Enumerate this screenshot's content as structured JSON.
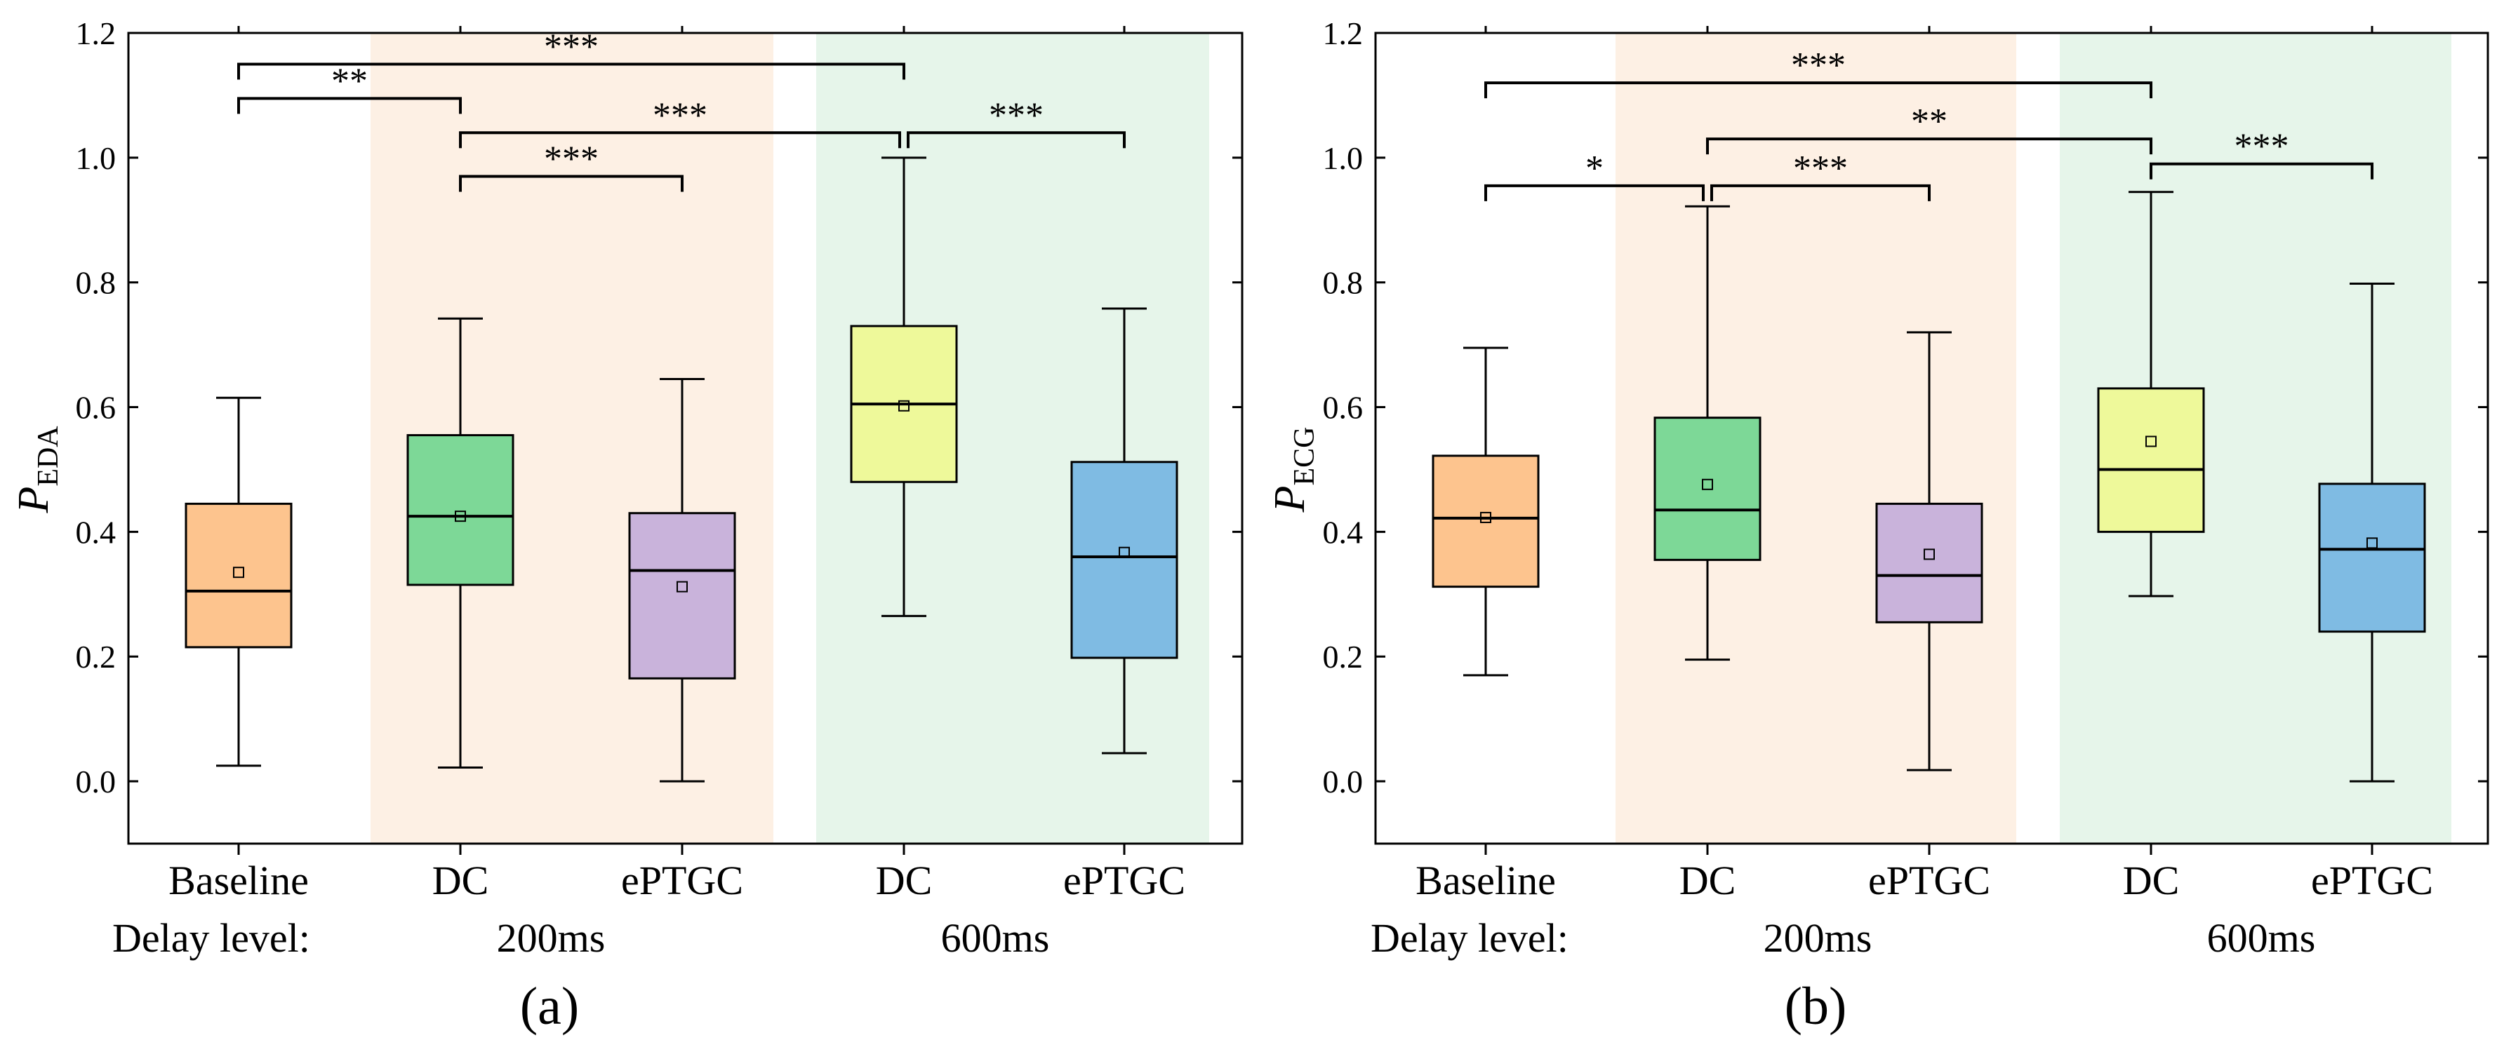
{
  "chart_data": [
    {
      "type": "box",
      "panel_label": "(a)",
      "ylabel_main": "P",
      "ylabel_sub": "EDA",
      "ylim": [
        -0.1,
        1.2
      ],
      "yticks": [
        0.0,
        0.2,
        0.4,
        0.6,
        0.8,
        1.0,
        1.2
      ],
      "ytick_labels": [
        "0.0",
        "0.2",
        "0.4",
        "0.6",
        "0.8",
        "1.0",
        "1.2"
      ],
      "categories": [
        "Baseline",
        "DC",
        "ePTGC",
        "DC",
        "ePTGC"
      ],
      "delay_label": "Delay level:",
      "delay_groups": [
        {
          "label": "200ms",
          "from": 1,
          "to": 2,
          "color": "#fdf0e4"
        },
        {
          "label": "600ms",
          "from": 3,
          "to": 4,
          "color": "#e6f5ea"
        }
      ],
      "boxes": [
        {
          "name": "Baseline",
          "min": 0.025,
          "q1": 0.215,
          "median": 0.305,
          "q3": 0.445,
          "max": 0.615,
          "mean": 0.335,
          "color": "#fdc48e"
        },
        {
          "name": "DC (200ms)",
          "min": 0.022,
          "q1": 0.315,
          "median": 0.425,
          "q3": 0.555,
          "max": 0.742,
          "mean": 0.425,
          "color": "#7dd897"
        },
        {
          "name": "ePTGC (200ms)",
          "min": 0.0,
          "q1": 0.165,
          "median": 0.338,
          "q3": 0.43,
          "max": 0.645,
          "mean": 0.312,
          "color": "#c9b3db"
        },
        {
          "name": "DC (600ms)",
          "min": 0.265,
          "q1": 0.48,
          "median": 0.605,
          "q3": 0.73,
          "max": 1.0,
          "mean": 0.602,
          "color": "#eef99a"
        },
        {
          "name": "ePTGC (600ms)",
          "min": 0.045,
          "q1": 0.198,
          "median": 0.36,
          "q3": 0.512,
          "max": 0.758,
          "mean": 0.367,
          "color": "#7fbbe3"
        }
      ],
      "significance": [
        {
          "from": 0,
          "to": 3,
          "y": 1.15,
          "label": "***"
        },
        {
          "from": 0,
          "to": 1,
          "y": 1.095,
          "label": "**"
        },
        {
          "from": 1,
          "to": 3,
          "y": 1.04,
          "label": "***"
        },
        {
          "from": 3,
          "to": 4,
          "y": 1.04,
          "label": "***"
        },
        {
          "from": 1,
          "to": 2,
          "y": 0.97,
          "label": "***"
        }
      ]
    },
    {
      "type": "box",
      "panel_label": "(b)",
      "ylabel_main": "P",
      "ylabel_sub": "ECG",
      "ylim": [
        -0.1,
        1.2
      ],
      "yticks": [
        0.0,
        0.2,
        0.4,
        0.6,
        0.8,
        1.0,
        1.2
      ],
      "ytick_labels": [
        "0.0",
        "0.2",
        "0.4",
        "0.6",
        "0.8",
        "1.0",
        "1.2"
      ],
      "categories": [
        "Baseline",
        "DC",
        "ePTGC",
        "DC",
        "ePTGC"
      ],
      "delay_label": "Delay level:",
      "delay_groups": [
        {
          "label": "200ms",
          "from": 1,
          "to": 2,
          "color": "#fdf0e4"
        },
        {
          "label": "600ms",
          "from": 3,
          "to": 4,
          "color": "#e6f5ea"
        }
      ],
      "boxes": [
        {
          "name": "Baseline",
          "min": 0.17,
          "q1": 0.312,
          "median": 0.422,
          "q3": 0.522,
          "max": 0.695,
          "mean": 0.423,
          "color": "#fdc48e"
        },
        {
          "name": "DC (200ms)",
          "min": 0.195,
          "q1": 0.355,
          "median": 0.435,
          "q3": 0.583,
          "max": 0.922,
          "mean": 0.476,
          "color": "#7dd897"
        },
        {
          "name": "ePTGC (200ms)",
          "min": 0.018,
          "q1": 0.255,
          "median": 0.33,
          "q3": 0.445,
          "max": 0.72,
          "mean": 0.364,
          "color": "#c9b3db"
        },
        {
          "name": "DC (600ms)",
          "min": 0.297,
          "q1": 0.4,
          "median": 0.5,
          "q3": 0.63,
          "max": 0.945,
          "mean": 0.545,
          "color": "#eef99a"
        },
        {
          "name": "ePTGC (600ms)",
          "min": 0.0,
          "q1": 0.24,
          "median": 0.372,
          "q3": 0.477,
          "max": 0.798,
          "mean": 0.382,
          "color": "#7fbbe3"
        }
      ],
      "significance": [
        {
          "from": 0,
          "to": 3,
          "y": 1.12,
          "label": "***"
        },
        {
          "from": 1,
          "to": 3,
          "y": 1.03,
          "label": "**"
        },
        {
          "from": 3,
          "to": 4,
          "y": 0.99,
          "label": "***"
        },
        {
          "from": 0,
          "to": 1,
          "y": 0.955,
          "label": "*"
        },
        {
          "from": 1,
          "to": 2,
          "y": 0.955,
          "label": "***"
        }
      ]
    }
  ]
}
